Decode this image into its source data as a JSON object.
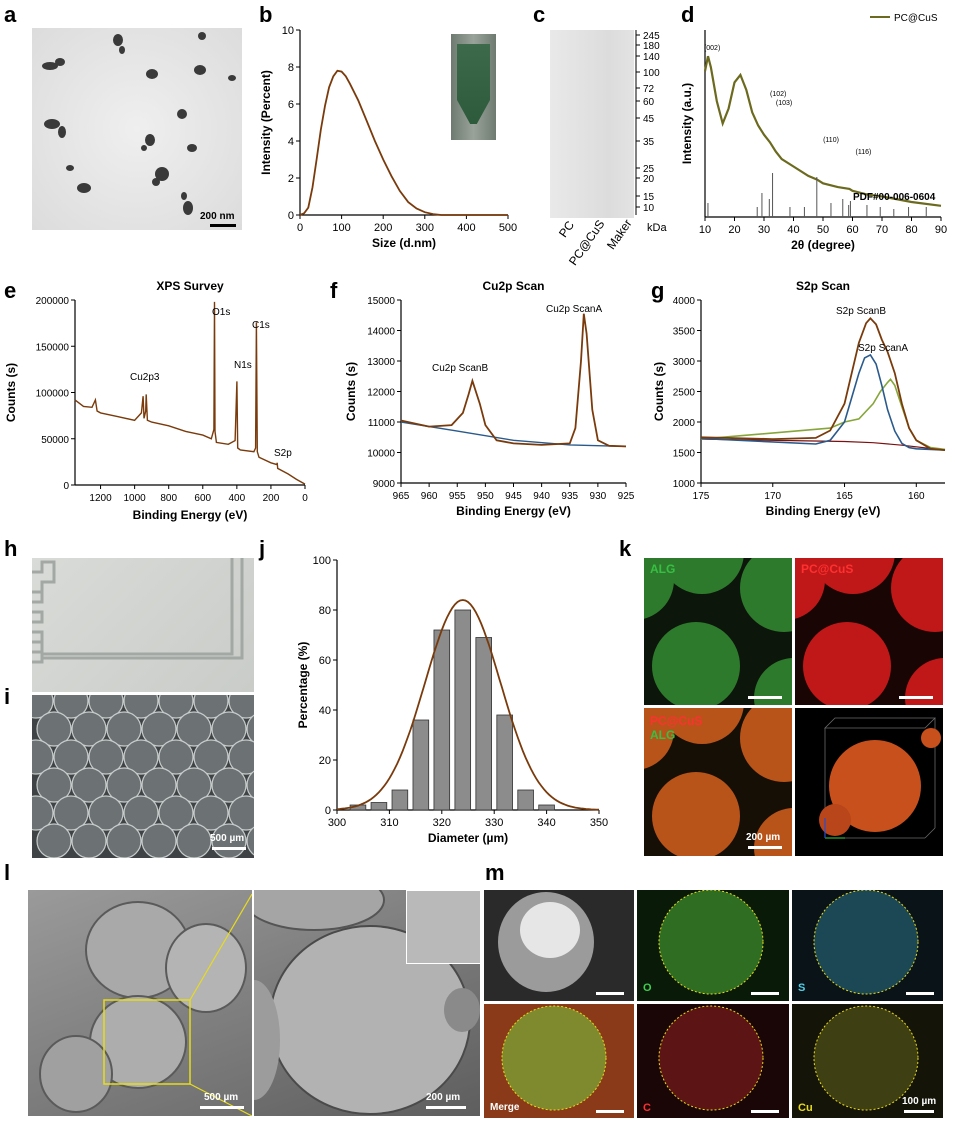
{
  "panels": {
    "a": "a",
    "b": "b",
    "c": "c",
    "d": "d",
    "e": "e",
    "f": "f",
    "g": "g",
    "h": "h",
    "i": "i",
    "j": "j",
    "k": "k",
    "l": "l",
    "m": "m"
  },
  "images": {
    "a_scale": "200 nm",
    "i_scale": "500 µm",
    "k_labels": {
      "alg": "ALG",
      "pccus": "PC@CuS",
      "merge_pc": "PC@CuS",
      "merge_alg": "ALG",
      "scale": "200 µm"
    },
    "l_scale_left": "500 µm",
    "l_scale_right": "200 µm",
    "m_labels": {
      "o": "O",
      "s": "S",
      "merge": "Merge",
      "c": "C",
      "cu": "Cu",
      "scale": "100 µm"
    }
  },
  "colors": {
    "brown": "#7a3b0c",
    "olive": "#6b6a1e",
    "blue": "#2a5a8c",
    "green": "#86a63a",
    "grey": "#a8a8a8",
    "darkred": "#7a1010",
    "bar": "#8c8c8c"
  },
  "chart_data": [
    {
      "id": "b",
      "type": "line",
      "title": "",
      "xlabel": "Size (d.nm)",
      "ylabel": "Intensity (Percent)",
      "xlim": [
        0,
        500
      ],
      "ylim": [
        0,
        10
      ],
      "xticks": [
        0,
        100,
        200,
        300,
        400,
        500
      ],
      "yticks": [
        0,
        2,
        4,
        6,
        8,
        10
      ],
      "series": [
        {
          "x": [
            0,
            10,
            20,
            30,
            40,
            50,
            60,
            70,
            80,
            90,
            100,
            110,
            120,
            140,
            160,
            180,
            200,
            220,
            240,
            260,
            280,
            300,
            320,
            340,
            400,
            500
          ],
          "y": [
            0,
            0.1,
            0.4,
            1.5,
            3.0,
            4.6,
            5.9,
            6.9,
            7.5,
            7.8,
            7.75,
            7.5,
            7.1,
            6.2,
            5.1,
            4.0,
            3.0,
            2.1,
            1.3,
            0.7,
            0.35,
            0.15,
            0.05,
            0,
            0,
            0
          ]
        }
      ]
    },
    {
      "id": "c",
      "type": "table",
      "title": "",
      "lanes": [
        "PC",
        "PC@CuS",
        "Maker"
      ],
      "marker_kda": [
        "245",
        "180",
        "140",
        "100",
        "72",
        "60",
        "45",
        "35",
        "25",
        "20",
        "15",
        "10"
      ],
      "unit": "kDa"
    },
    {
      "id": "d",
      "type": "line",
      "title": "",
      "xlabel": "2θ (degree)",
      "ylabel": "Intensity (a.u.)",
      "xlim": [
        10,
        90
      ],
      "xticks": [
        10,
        20,
        30,
        40,
        50,
        60,
        70,
        80,
        90
      ],
      "legend": "PC@CuS",
      "legend_position": "top-right",
      "reference": "PDF#00-006-0604",
      "annotations": [
        {
          "text": "(002)",
          "x": 11
        },
        {
          "text": "(102)",
          "x": 30
        },
        {
          "text": "(103)",
          "x": 32
        },
        {
          "text": "(110)",
          "x": 48
        },
        {
          "text": "(116)",
          "x": 59
        }
      ],
      "series": [
        {
          "name": "PC@CuS",
          "x": [
            10,
            11,
            12,
            14,
            16,
            18,
            20,
            22,
            24,
            26,
            28,
            30,
            32,
            34,
            36,
            40,
            45,
            48,
            50,
            55,
            59,
            60,
            65,
            70,
            80,
            90
          ],
          "y": [
            0.78,
            0.86,
            0.8,
            0.62,
            0.5,
            0.58,
            0.72,
            0.76,
            0.68,
            0.56,
            0.49,
            0.44,
            0.4,
            0.35,
            0.31,
            0.27,
            0.22,
            0.2,
            0.18,
            0.16,
            0.15,
            0.14,
            0.12,
            0.11,
            0.08,
            0.06
          ]
        }
      ],
      "stick_positions": [
        11,
        27.7,
        29.3,
        31.8,
        32.9,
        38.8,
        43.7,
        47.9,
        52.7,
        56.7,
        58.7,
        59.3,
        64.9,
        69.4,
        74.0,
        79.0,
        85.0
      ]
    },
    {
      "id": "e",
      "type": "line",
      "title": "XPS Survey",
      "xlabel": "Binding Energy (eV)",
      "ylabel": "Counts (s)",
      "xlim": [
        1350,
        0
      ],
      "ylim": [
        0,
        200000
      ],
      "xticks": [
        1200,
        1000,
        800,
        600,
        400,
        200,
        0
      ],
      "yticks": [
        0,
        50000,
        100000,
        150000,
        200000
      ],
      "peak_labels": [
        {
          "text": "Cu2p3",
          "x": 932
        },
        {
          "text": "O1s",
          "x": 531
        },
        {
          "text": "N1s",
          "x": 400
        },
        {
          "text": "C1s",
          "x": 285
        },
        {
          "text": "S2p",
          "x": 163
        }
      ],
      "series": [
        {
          "x": [
            1350,
            1300,
            1250,
            1230,
            1220,
            1200,
            1100,
            1000,
            960,
            950,
            945,
            935,
            932,
            925,
            900,
            800,
            700,
            600,
            550,
            535,
            531,
            528,
            520,
            450,
            410,
            400,
            395,
            380,
            300,
            290,
            285,
            280,
            270,
            200,
            165,
            163,
            160,
            100,
            50,
            0
          ],
          "y": [
            92000,
            85000,
            84000,
            92000,
            80000,
            78000,
            74000,
            70000,
            78000,
            96000,
            72000,
            80000,
            98000,
            70000,
            68000,
            64000,
            58000,
            54000,
            50000,
            60000,
            198000,
            58000,
            46000,
            44000,
            48000,
            112000,
            40000,
            38000,
            36000,
            40000,
            176000,
            36000,
            30000,
            24000,
            22000,
            24000,
            18000,
            12000,
            6000,
            1000
          ]
        }
      ]
    },
    {
      "id": "f",
      "type": "line",
      "title": "Cu2p Scan",
      "xlabel": "Binding Energy (eV)",
      "ylabel": "Counts (s)",
      "xlim": [
        965,
        925
      ],
      "ylim": [
        9000,
        15000
      ],
      "xticks": [
        965,
        960,
        955,
        950,
        945,
        940,
        935,
        930,
        925
      ],
      "yticks": [
        9000,
        10000,
        11000,
        12000,
        13000,
        14000,
        15000
      ],
      "annotations": [
        {
          "text": "Cu2p ScanA",
          "x": 932.5
        },
        {
          "text": "Cu2p ScanB",
          "x": 952.3
        }
      ],
      "series": [
        {
          "name": "envelope",
          "x": [
            965,
            960,
            956,
            954,
            953,
            952.3,
            951,
            950,
            948,
            945,
            940,
            935,
            934,
            933,
            932.5,
            932,
            931,
            930,
            928,
            925
          ],
          "y": [
            11050,
            10850,
            10900,
            11300,
            11900,
            12350,
            11600,
            10900,
            10400,
            10300,
            10250,
            10300,
            10800,
            13000,
            14550,
            13900,
            11400,
            10400,
            10220,
            10200
          ]
        },
        {
          "name": "background",
          "x": [
            965,
            955,
            945,
            935,
            925
          ],
          "y": [
            11000,
            10700,
            10400,
            10250,
            10200
          ]
        }
      ]
    },
    {
      "id": "g",
      "type": "line",
      "title": "S2p Scan",
      "xlabel": "Binding Energy (eV)",
      "ylabel": "Counts (s)",
      "xlim": [
        175,
        158
      ],
      "ylim": [
        1000,
        4000
      ],
      "xticks": [
        175,
        170,
        165,
        160
      ],
      "yticks": [
        1000,
        1500,
        2000,
        2500,
        3000,
        3500,
        4000
      ],
      "annotations": [
        {
          "text": "S2p ScanB",
          "x": 163.2
        },
        {
          "text": "S2p ScanA",
          "x": 161.8
        }
      ],
      "series": [
        {
          "name": "envelope",
          "x": [
            175,
            170,
            167,
            166,
            165,
            164.5,
            164,
            163.5,
            163.2,
            162.8,
            162.4,
            162,
            161.5,
            161,
            160.5,
            160,
            159,
            158
          ],
          "y": [
            1750,
            1720,
            1740,
            1860,
            2300,
            2800,
            3300,
            3620,
            3700,
            3600,
            3350,
            3150,
            2800,
            2300,
            1900,
            1700,
            1560,
            1540
          ]
        },
        {
          "name": "ScanB",
          "x": [
            175,
            167,
            166,
            165,
            164.5,
            164,
            163.6,
            163.2,
            162.8,
            162.4,
            162,
            161.5,
            161,
            160.5,
            160,
            158
          ],
          "y": [
            1730,
            1640,
            1700,
            2000,
            2400,
            2800,
            3050,
            3100,
            2950,
            2600,
            2200,
            1850,
            1650,
            1580,
            1560,
            1540
          ]
        },
        {
          "name": "ScanA",
          "x": [
            175,
            166,
            165,
            164,
            163,
            162.5,
            162,
            161.8,
            161.5,
            161,
            160.5,
            160,
            159,
            158
          ],
          "y": [
            1720,
            1900,
            2000,
            2050,
            2300,
            2500,
            2650,
            2700,
            2600,
            2250,
            1900,
            1700,
            1580,
            1550
          ]
        },
        {
          "name": "background",
          "x": [
            175,
            165,
            163,
            161,
            158
          ],
          "y": [
            1720,
            1680,
            1660,
            1620,
            1540
          ]
        }
      ]
    },
    {
      "id": "j",
      "type": "bar",
      "title": "",
      "xlabel": "Diameter (µm)",
      "ylabel": "Percentage (%)",
      "xlim": [
        300,
        350
      ],
      "ylim": [
        0,
        100
      ],
      "xticks": [
        300,
        310,
        320,
        330,
        340,
        350
      ],
      "yticks": [
        0,
        20,
        40,
        60,
        80,
        100
      ],
      "x": [
        304,
        308,
        312,
        316,
        320,
        324,
        328,
        332,
        336,
        340
      ],
      "values": [
        2,
        3,
        8,
        36,
        72,
        80,
        69,
        38,
        8,
        2
      ],
      "fit": {
        "type": "gaussian",
        "mu": 324,
        "sigma": 7.2,
        "amplitude": 84
      }
    }
  ]
}
